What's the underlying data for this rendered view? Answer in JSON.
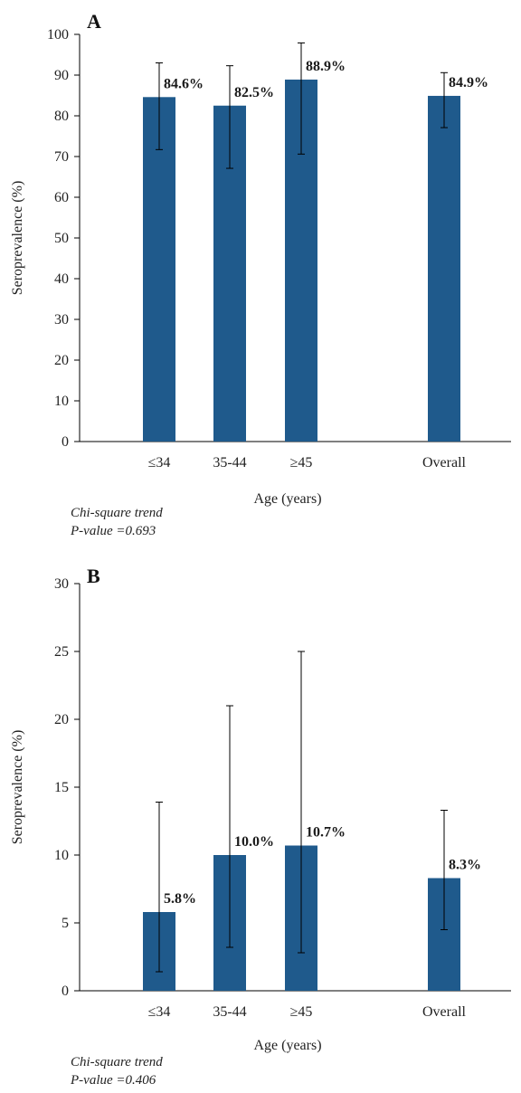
{
  "chart_data": [
    {
      "panel_label": "A",
      "type": "bar",
      "categories": [
        "≤34",
        "35-44",
        "≥45",
        "Overall"
      ],
      "values": [
        84.6,
        82.5,
        88.9,
        84.9
      ],
      "error_low": [
        71.7,
        67.1,
        70.6,
        77.1
      ],
      "error_high": [
        93.0,
        92.3,
        97.9,
        90.6
      ],
      "data_labels": [
        "84.6%",
        "82.5%",
        "88.9%",
        "84.9%"
      ],
      "xlabel": "Age (years)",
      "ylabel": "Seroprevalence (%)",
      "ylim": [
        0,
        100
      ],
      "yticks": [
        0,
        10,
        20,
        30,
        40,
        50,
        60,
        70,
        80,
        90,
        100
      ],
      "bar_color": "#1f5a8c",
      "note_line1": "Chi-square trend",
      "note_line2": "P-value =0.693"
    },
    {
      "panel_label": "B",
      "type": "bar",
      "categories": [
        "≤34",
        "35-44",
        "≥45",
        "Overall"
      ],
      "values": [
        5.8,
        10.0,
        10.7,
        8.3
      ],
      "error_low": [
        1.4,
        3.2,
        2.8,
        4.5
      ],
      "error_high": [
        13.9,
        21.0,
        25.0,
        13.3
      ],
      "data_labels": [
        "5.8%",
        "10.0%",
        "10.7%",
        "8.3%"
      ],
      "xlabel": "Age (years)",
      "ylabel": "Seroprevalence (%)",
      "ylim": [
        0,
        30
      ],
      "yticks": [
        0,
        5,
        10,
        15,
        20,
        25,
        30
      ],
      "bar_color": "#1f5a8c",
      "note_line1": "Chi-square trend",
      "note_line2": "P-value =0.406"
    }
  ]
}
